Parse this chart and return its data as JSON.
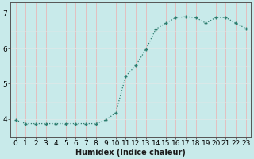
{
  "x": [
    0,
    1,
    2,
    3,
    4,
    5,
    6,
    7,
    8,
    9,
    10,
    11,
    12,
    13,
    14,
    15,
    16,
    17,
    18,
    19,
    20,
    21,
    22,
    23
  ],
  "y": [
    3.97,
    3.87,
    3.87,
    3.87,
    3.87,
    3.87,
    3.87,
    3.87,
    3.87,
    3.97,
    4.18,
    5.22,
    5.52,
    5.97,
    6.55,
    6.72,
    6.88,
    6.9,
    6.88,
    6.72,
    6.88,
    6.88,
    6.72,
    6.57
  ],
  "line_color": "#2d7d6f",
  "marker": "+",
  "marker_size": 3.5,
  "marker_lw": 1.0,
  "bg_color": "#c8eaea",
  "grid_color_v": "#e8b8b8",
  "grid_color_h": "#dde8e8",
  "xlabel": "Humidex (Indice chaleur)",
  "xlim": [
    -0.5,
    23.5
  ],
  "ylim": [
    3.5,
    7.3
  ],
  "yticks": [
    4,
    5,
    6,
    7
  ],
  "xticks": [
    0,
    1,
    2,
    3,
    4,
    5,
    6,
    7,
    8,
    9,
    10,
    11,
    12,
    13,
    14,
    15,
    16,
    17,
    18,
    19,
    20,
    21,
    22,
    23
  ],
  "xlabel_fontsize": 7,
  "tick_fontsize": 6.5,
  "line_width": 0.9,
  "spine_color": "#555555"
}
